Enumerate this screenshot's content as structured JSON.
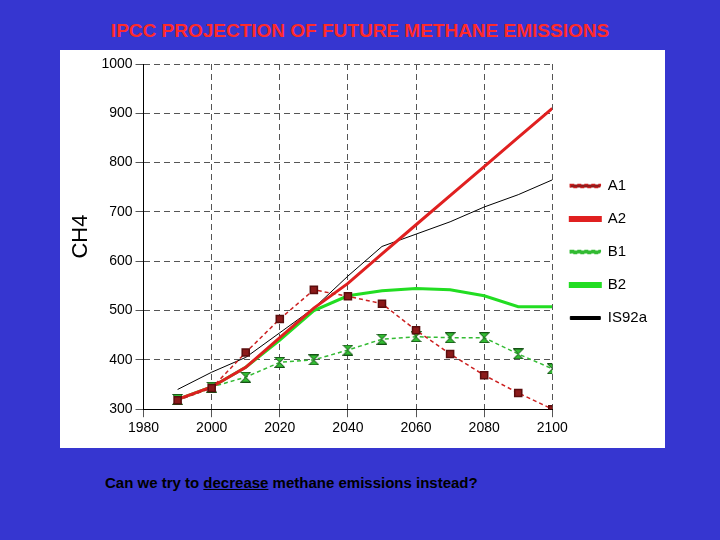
{
  "chart_data": {
    "type": "line",
    "title": "IPCC PROJECTION OF FUTURE METHANE EMISSIONS",
    "y_label": "CH4",
    "footnote": [
      "Can we try to",
      "decrease",
      "methane emissions instead?"
    ],
    "x": [
      1990,
      2000,
      2010,
      2020,
      2030,
      2040,
      2050,
      2060,
      2070,
      2080,
      2090,
      2100
    ],
    "series": [
      {
        "name": "A1",
        "color": "#cc2020",
        "marker": "square",
        "line_style": "dashed",
        "values": [
          318,
          343,
          415,
          483,
          542,
          529,
          514,
          460,
          412,
          369,
          333,
          300
        ]
      },
      {
        "name": "A2",
        "color": "#e02020",
        "marker": "none",
        "line_style": "solid",
        "values": [
          320,
          345,
          385,
          445,
          505,
          555,
          615,
          674,
          733,
          792,
          851,
          910
        ]
      },
      {
        "name": "B1",
        "color": "#33bb33",
        "marker": "hourglass",
        "line_style": "dashed",
        "values": [
          320,
          345,
          365,
          395,
          400,
          420,
          442,
          447,
          445,
          445,
          412,
          382
        ]
      },
      {
        "name": "B2",
        "color": "#22dd22",
        "marker": "none",
        "line_style": "solid",
        "values": [
          320,
          345,
          385,
          440,
          500,
          530,
          540,
          545,
          542,
          530,
          508,
          508
        ]
      },
      {
        "name": "IS92a",
        "color": "#000000",
        "marker": "none",
        "line_style": "thin",
        "values": [
          340,
          375,
          405,
          455,
          505,
          570,
          630,
          655,
          680,
          710,
          735,
          765
        ]
      }
    ],
    "xlim": [
      1980,
      2100
    ],
    "xticks": [
      1980,
      2000,
      2020,
      2040,
      2060,
      2080,
      2100
    ],
    "ylim": [
      300,
      1000
    ],
    "yticks": [
      300,
      400,
      500,
      600,
      700,
      800,
      900,
      1000
    ],
    "grid": true,
    "legend": "right"
  }
}
